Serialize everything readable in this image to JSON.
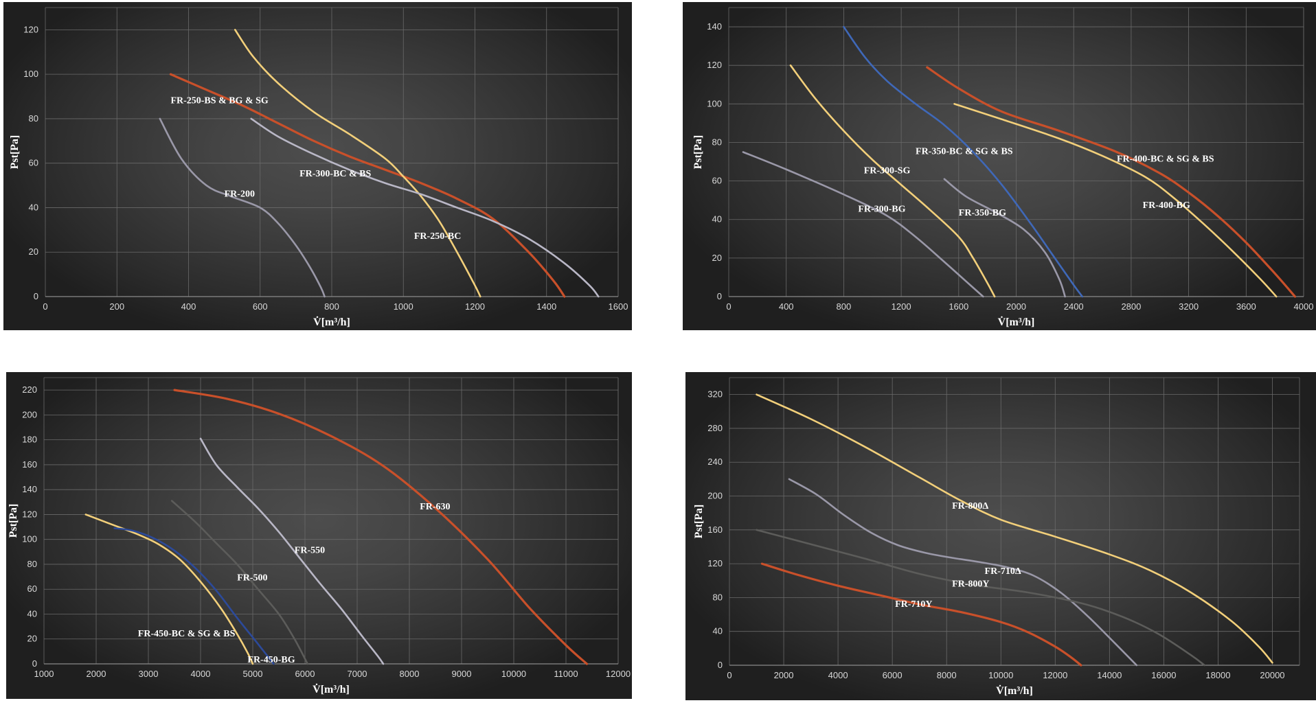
{
  "colors": {
    "orange": "#c9502a",
    "yellow": "#f2cf7a",
    "lightgray": "#b9b7c6",
    "gray": "#9a98a8",
    "blue": "#3f68b8",
    "darkblue": "#2c4a9a",
    "darkgray": "#5c5c5a"
  },
  "chart_data": [
    {
      "type": "line",
      "title": "",
      "xlabel": "V̇[m³/h]",
      "ylabel": "Pst[Pa]",
      "xlim": [
        0,
        1600
      ],
      "ylim": [
        0,
        130
      ],
      "xticks": [
        0,
        200,
        400,
        600,
        800,
        1000,
        1200,
        1400,
        1600
      ],
      "yticks": [
        0,
        20,
        40,
        60,
        80,
        100,
        120
      ],
      "grid": true,
      "series": [
        {
          "name": "FR-200",
          "color": "gray",
          "x": [
            320,
            380,
            450,
            520,
            600,
            650,
            700,
            740,
            770,
            780
          ],
          "y": [
            80,
            62,
            50,
            45,
            40,
            33,
            23,
            13,
            4,
            0
          ],
          "label_at": [
            500,
            45
          ]
        },
        {
          "name": "FR-250-BS & BG & SG",
          "color": "orange",
          "x": [
            350,
            450,
            550,
            650,
            750,
            850,
            950,
            1050,
            1150,
            1250,
            1350,
            1420,
            1450
          ],
          "y": [
            100,
            93,
            86,
            78,
            70,
            63,
            57,
            51,
            44,
            35,
            20,
            7,
            0
          ],
          "label_at": [
            350,
            87
          ]
        },
        {
          "name": "FR-250-BC",
          "color": "yellow",
          "x": [
            530,
            580,
            650,
            750,
            850,
            950,
            1000,
            1050,
            1100,
            1150,
            1200,
            1215
          ],
          "y": [
            120,
            108,
            96,
            83,
            73,
            62,
            54,
            45,
            34,
            20,
            5,
            0
          ],
          "label_at": [
            1030,
            26
          ]
        },
        {
          "name": "FR-300-BC & BS",
          "color": "lightgray",
          "x": [
            575,
            650,
            750,
            850,
            950,
            1050,
            1150,
            1250,
            1350,
            1450,
            1520,
            1545
          ],
          "y": [
            80,
            72,
            64,
            57,
            51,
            46,
            40,
            34,
            26,
            15,
            5,
            0
          ],
          "label_at": [
            710,
            54
          ]
        }
      ]
    },
    {
      "type": "line",
      "title": "",
      "xlabel": "V̇[m³/h]",
      "ylabel": "Pst[Pa]",
      "xlim": [
        0,
        4000
      ],
      "ylim": [
        0,
        150
      ],
      "xticks": [
        0,
        400,
        800,
        1200,
        1600,
        2000,
        2400,
        2800,
        3200,
        3600,
        4000
      ],
      "yticks": [
        0,
        20,
        40,
        60,
        80,
        100,
        120,
        140
      ],
      "grid": true,
      "series": [
        {
          "name": "FR-300-BG",
          "color": "gray",
          "x": [
            100,
            400,
            800,
            1100,
            1300,
            1500,
            1650,
            1770
          ],
          "y": [
            75,
            66,
            53,
            42,
            31,
            18,
            8,
            0
          ],
          "label_at": [
            900,
            44
          ]
        },
        {
          "name": "FR-300-SG",
          "color": "yellow",
          "x": [
            430,
            600,
            800,
            1000,
            1200,
            1400,
            1600,
            1700,
            1800,
            1850
          ],
          "y": [
            120,
            103,
            86,
            71,
            58,
            45,
            31,
            20,
            7,
            0
          ],
          "label_at": [
            940,
            64
          ]
        },
        {
          "name": "FR-350-BC & SG & BS",
          "color": "blue",
          "x": [
            800,
            950,
            1100,
            1300,
            1500,
            1700,
            1900,
            2100,
            2250,
            2400,
            2460
          ],
          "y": [
            140,
            124,
            112,
            100,
            89,
            75,
            58,
            38,
            22,
            6,
            0
          ],
          "label_at": [
            1300,
            74
          ]
        },
        {
          "name": "FR-350-BG",
          "color": "gray",
          "x": [
            1500,
            1650,
            1850,
            2050,
            2200,
            2300,
            2340
          ],
          "y": [
            61,
            52,
            44,
            35,
            23,
            9,
            0
          ],
          "label_at": [
            1600,
            42
          ]
        },
        {
          "name": "FR-400-BC & SG & BS",
          "color": "orange",
          "x": [
            1380,
            1600,
            1900,
            2300,
            2700,
            3000,
            3200,
            3400,
            3600,
            3800,
            3940
          ],
          "y": [
            119,
            108,
            96,
            86,
            75,
            64,
            54,
            42,
            28,
            12,
            0
          ],
          "label_at": [
            2700,
            70
          ]
        },
        {
          "name": "FR-400-BG",
          "color": "yellow",
          "x": [
            1570,
            1900,
            2300,
            2600,
            2900,
            3100,
            3300,
            3500,
            3700,
            3810
          ],
          "y": [
            100,
            92,
            82,
            73,
            62,
            51,
            38,
            24,
            9,
            0
          ],
          "label_at": [
            2880,
            46
          ]
        }
      ]
    },
    {
      "type": "line",
      "title": "",
      "xlabel": "V̇[m³/h]",
      "ylabel": "Pst[Pa]",
      "xlim": [
        1000,
        12000
      ],
      "ylim": [
        0,
        230
      ],
      "xticks": [
        1000,
        2000,
        3000,
        4000,
        5000,
        6000,
        7000,
        8000,
        9000,
        10000,
        11000,
        12000
      ],
      "yticks": [
        0,
        20,
        40,
        60,
        80,
        100,
        120,
        140,
        160,
        180,
        200,
        220
      ],
      "grid": true,
      "series": [
        {
          "name": "FR-450-BC & SG & BS",
          "color": "yellow",
          "x": [
            1800,
            2300,
            2800,
            3200,
            3600,
            4000,
            4400,
            4700,
            4900,
            5000
          ],
          "y": [
            120,
            112,
            104,
            96,
            84,
            66,
            44,
            24,
            9,
            0
          ],
          "label_at": [
            2800,
            22
          ]
        },
        {
          "name": "FR-450-BG",
          "color": "darkblue",
          "x": [
            2350,
            2700,
            3100,
            3500,
            3900,
            4300,
            4700,
            5100,
            5400
          ],
          "y": [
            109,
            107,
            101,
            91,
            77,
            59,
            37,
            16,
            0
          ],
          "label_at": [
            4900,
            1
          ]
        },
        {
          "name": "FR-500",
          "color": "darkgray",
          "x": [
            3450,
            3900,
            4300,
            4700,
            5100,
            5500,
            5800,
            6050
          ],
          "y": [
            131,
            114,
            97,
            80,
            60,
            40,
            20,
            0
          ],
          "label_at": [
            4700,
            67
          ]
        },
        {
          "name": "FR-550",
          "color": "lightgray",
          "x": [
            4000,
            4300,
            4700,
            5100,
            5500,
            5900,
            6300,
            6700,
            7100,
            7400,
            7500
          ],
          "y": [
            181,
            160,
            142,
            125,
            106,
            85,
            64,
            44,
            22,
            6,
            0
          ],
          "label_at": [
            5800,
            89
          ]
        },
        {
          "name": "FR-630",
          "color": "orange",
          "x": [
            3500,
            4500,
            5500,
            6500,
            7500,
            8500,
            9500,
            10300,
            11000,
            11400
          ],
          "y": [
            220,
            213,
            201,
            183,
            159,
            125,
            84,
            45,
            15,
            0
          ],
          "label_at": [
            8200,
            124
          ]
        }
      ]
    },
    {
      "type": "line",
      "title": "",
      "xlabel": "V̇[m³/h]",
      "ylabel": "Pst[Pa]",
      "xlim": [
        0,
        21000
      ],
      "ylim": [
        0,
        340
      ],
      "xticks": [
        0,
        2000,
        4000,
        6000,
        8000,
        10000,
        12000,
        14000,
        16000,
        18000,
        20000
      ],
      "yticks": [
        0,
        40,
        80,
        120,
        160,
        200,
        240,
        280,
        320
      ],
      "grid": true,
      "series": [
        {
          "name": "FR-710Y",
          "color": "orange",
          "x": [
            1200,
            2500,
            4000,
            5500,
            7000,
            8500,
            10000,
            11000,
            12000,
            12600,
            12950
          ],
          "y": [
            120,
            107,
            94,
            83,
            72,
            63,
            51,
            39,
            22,
            9,
            0
          ],
          "label_at": [
            6100,
            69
          ]
        },
        {
          "name": "FR-710Δ",
          "color": "gray",
          "x": [
            2200,
            3200,
            4200,
            5200,
            6200,
            7200,
            8200,
            9200,
            10200,
            11200,
            12200,
            13200,
            14200,
            15000
          ],
          "y": [
            220,
            202,
            178,
            157,
            142,
            133,
            127,
            122,
            116,
            106,
            86,
            58,
            26,
            0
          ],
          "label_at": [
            9400,
            108
          ]
        },
        {
          "name": "FR-800Y",
          "color": "darkgray",
          "x": [
            1000,
            3000,
            5000,
            7000,
            9000,
            11000,
            13000,
            14500,
            15800,
            17000,
            17500
          ],
          "y": [
            160,
            143,
            126,
            108,
            95,
            86,
            73,
            57,
            37,
            12,
            0
          ],
          "label_at": [
            8200,
            93
          ]
        },
        {
          "name": "FR-800Δ",
          "color": "yellow",
          "x": [
            1000,
            3000,
            5000,
            7000,
            8500,
            10000,
            12000,
            14000,
            15500,
            17000,
            18500,
            19500,
            20000
          ],
          "y": [
            320,
            291,
            258,
            222,
            195,
            172,
            152,
            131,
            112,
            86,
            52,
            22,
            3
          ],
          "label_at": [
            8200,
            185
          ]
        }
      ]
    }
  ]
}
